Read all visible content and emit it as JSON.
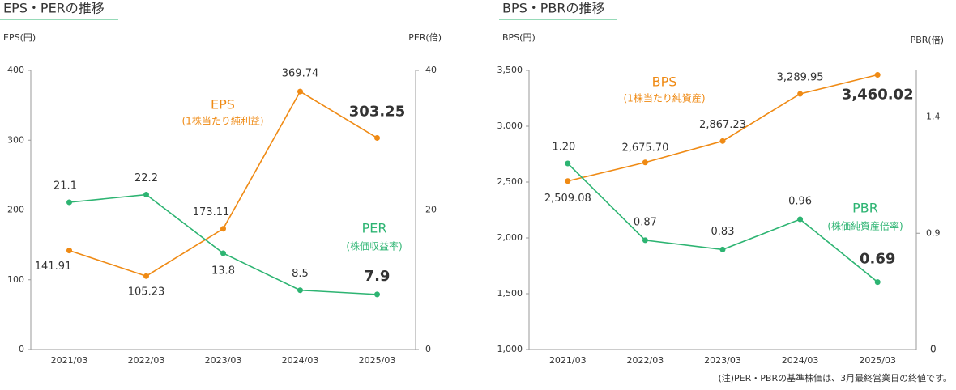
{
  "chart_data": [
    {
      "type": "line",
      "title": "EPS・PERの推移",
      "y_label": "EPS(円)",
      "y2_label": "PER(倍)",
      "categories": [
        "2021/03",
        "2022/03",
        "2023/03",
        "2024/03",
        "2025/03"
      ],
      "series": [
        {
          "name": "EPS",
          "description": "(1株当たり純利益)",
          "color": "#ef8a14",
          "values": [
            141.91,
            105.23,
            173.11,
            369.74,
            303.25
          ]
        },
        {
          "name": "PER",
          "description": "(株価収益率)",
          "color": "#2db472",
          "axis": "y2",
          "values": [
            21.1,
            22.2,
            13.8,
            8.5,
            7.9
          ]
        }
      ],
      "ylim": [
        0,
        400
      ],
      "yticks": [
        0,
        100,
        200,
        300,
        400
      ],
      "y2lim": [
        0,
        40
      ],
      "y2ticks": [
        0,
        20,
        40
      ]
    },
    {
      "type": "line",
      "title": "BPS・PBRの推移",
      "y_label": "BPS(円)",
      "y2_label": "PBR(倍)",
      "categories": [
        "2021/03",
        "2022/03",
        "2023/03",
        "2024/03",
        "2025/03"
      ],
      "series": [
        {
          "name": "BPS",
          "description": "(1株当たり純資産)",
          "color": "#ef8a14",
          "values": [
            2509.08,
            2675.7,
            2867.23,
            3289.95,
            3460.02
          ],
          "value_labels": [
            "2,509.08",
            "2,675.70",
            "2,867.23",
            "3,289.95",
            "3,460.02"
          ]
        },
        {
          "name": "PBR",
          "description": "(株価純資産倍率)",
          "color": "#2db472",
          "axis": "y2",
          "values": [
            1.2,
            0.87,
            0.83,
            0.96,
            0.69
          ],
          "value_labels": [
            "1.20",
            "0.87",
            "0.83",
            "0.96",
            "0.69"
          ]
        }
      ],
      "ylim": [
        1000,
        3500
      ],
      "yticks": [
        {
          "value": 1000,
          "label": "1,000"
        },
        {
          "value": 1500,
          "label": "1,500"
        },
        {
          "value": 2000,
          "label": "2,000"
        },
        {
          "value": 2500,
          "label": "2,500"
        },
        {
          "value": 3000,
          "label": "3,000"
        },
        {
          "value": 3500,
          "label": "3,500"
        }
      ],
      "y2lim": [
        0.4,
        1.6
      ],
      "y2ticks": [
        0.9,
        1.4
      ],
      "y2_axis_origin_label": "0",
      "note": "(注)PER・PBRの基準株価は、3月最終営業日の終値です。"
    }
  ]
}
